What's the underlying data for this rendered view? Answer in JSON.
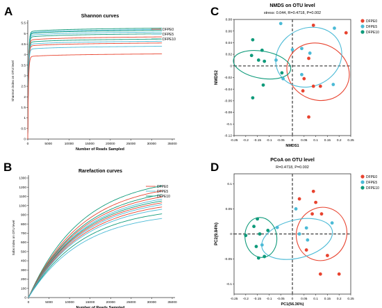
{
  "colors": {
    "dfpe0": "#e8432f",
    "dfpe5": "#4bbad6",
    "dfpe10": "#0e9a7a",
    "axis": "#222222"
  },
  "chart_data": [
    {
      "panel": "A",
      "type": "line",
      "title": "Shannon curves",
      "xlabel": "Number of Reads Sampled",
      "ylabel": "Shannon index on OTU level",
      "xlim": [
        0,
        35000
      ],
      "ylim": [
        0,
        5.5
      ],
      "xticks": [
        "0",
        "5000",
        "10000",
        "15000",
        "20000",
        "25000",
        "30000",
        "35000"
      ],
      "yticks": [
        "0",
        "0.5",
        "1",
        "1.5",
        "2",
        "2.5",
        "3",
        "3.5",
        "4",
        "4.5",
        "5",
        "5.5"
      ],
      "legend": [
        "DFPE0",
        "DFPE5",
        "DFPE10"
      ],
      "series": [
        {
          "group": "dfpe10",
          "plateau": 5.08
        },
        {
          "group": "dfpe5",
          "plateau": 5.02
        },
        {
          "group": "dfpe10",
          "plateau": 4.98
        },
        {
          "group": "dfpe5",
          "plateau": 4.9
        },
        {
          "group": "dfpe10",
          "plateau": 4.82
        },
        {
          "group": "dfpe0",
          "plateau": 4.68
        },
        {
          "group": "dfpe10",
          "plateau": 4.58
        },
        {
          "group": "dfpe5",
          "plateau": 4.48
        },
        {
          "group": "dfpe0",
          "plateau": 4.4
        },
        {
          "group": "dfpe5",
          "plateau": 4.25
        },
        {
          "group": "dfpe0",
          "plateau": 3.9
        }
      ]
    },
    {
      "panel": "B",
      "type": "line",
      "title": "Rarefaction curves",
      "xlabel": "Number of Reads Sampled",
      "ylabel": "Sobs index on OTU level",
      "xlim": [
        0,
        35000
      ],
      "ylim": [
        0,
        1300
      ],
      "xticks": [
        "0",
        "5000",
        "10000",
        "15000",
        "20000",
        "25000",
        "30000",
        "35000"
      ],
      "yticks": [
        "0",
        "100",
        "200",
        "300",
        "400",
        "500",
        "600",
        "700",
        "800",
        "900",
        "1000",
        "1100",
        "1200",
        "1300"
      ],
      "legend": [
        "DFPE0",
        "DFPE5",
        "DFPE10"
      ],
      "series": [
        {
          "group": "dfpe10",
          "end": 1215
        },
        {
          "group": "dfpe0",
          "end": 1160
        },
        {
          "group": "dfpe10",
          "end": 1120
        },
        {
          "group": "dfpe0",
          "end": 1095
        },
        {
          "group": "dfpe5",
          "end": 1070
        },
        {
          "group": "dfpe10",
          "end": 1050
        },
        {
          "group": "dfpe0",
          "end": 1030
        },
        {
          "group": "dfpe5",
          "end": 1010
        },
        {
          "group": "dfpe0",
          "end": 985
        },
        {
          "group": "dfpe5",
          "end": 960
        },
        {
          "group": "dfpe10",
          "end": 910
        },
        {
          "group": "dfpe5",
          "end": 860
        }
      ]
    },
    {
      "panel": "C",
      "type": "scatter",
      "title": "NMDS on OTU level",
      "subtitle": "stress: 0.044, R=0.4718, P=0.002",
      "xlabel": "NMDS1",
      "ylabel": "NMDS2",
      "xlim": [
        -0.25,
        0.25
      ],
      "ylim": [
        -0.12,
        0.08
      ],
      "xticks": [
        "-0.25",
        "-0.2",
        "-0.15",
        "-0.1",
        "-0.05",
        "0",
        "0.05",
        "0.1",
        "0.15",
        "0.2",
        "0.25"
      ],
      "yticks": [
        "-0.12",
        "-0.1",
        "-0.08",
        "-0.06",
        "-0.04",
        "-0.02",
        "0",
        "0.02",
        "0.04",
        "0.06",
        "0.08"
      ],
      "legend": [
        "DFPE0",
        "DFPE5",
        "DFPE10"
      ],
      "points": [
        {
          "group": "dfpe0",
          "x": 0.09,
          "y": 0.07
        },
        {
          "group": "dfpe0",
          "x": 0.23,
          "y": 0.057
        },
        {
          "group": "dfpe0",
          "x": 0.07,
          "y": 0.013
        },
        {
          "group": "dfpe0",
          "x": 0.05,
          "y": -0.022
        },
        {
          "group": "dfpe0",
          "x": 0.09,
          "y": -0.035
        },
        {
          "group": "dfpe0",
          "x": 0.12,
          "y": -0.035
        },
        {
          "group": "dfpe0",
          "x": 0.045,
          "y": -0.043
        },
        {
          "group": "dfpe0",
          "x": 0.07,
          "y": -0.088
        },
        {
          "group": "dfpe5",
          "x": -0.05,
          "y": 0.073
        },
        {
          "group": "dfpe5",
          "x": 0.18,
          "y": 0.065
        },
        {
          "group": "dfpe5",
          "x": 0.0,
          "y": 0.028
        },
        {
          "group": "dfpe5",
          "x": 0.04,
          "y": 0.03
        },
        {
          "group": "dfpe5",
          "x": 0.075,
          "y": 0.022
        },
        {
          "group": "dfpe5",
          "x": -0.07,
          "y": 0.01
        },
        {
          "group": "dfpe5",
          "x": -0.04,
          "y": -0.022
        },
        {
          "group": "dfpe5",
          "x": 0.04,
          "y": -0.015
        },
        {
          "group": "dfpe5",
          "x": 0.175,
          "y": -0.032
        },
        {
          "group": "dfpe10",
          "x": -0.17,
          "y": 0.045
        },
        {
          "group": "dfpe10",
          "x": -0.13,
          "y": 0.027
        },
        {
          "group": "dfpe10",
          "x": -0.145,
          "y": 0.01
        },
        {
          "group": "dfpe10",
          "x": -0.175,
          "y": 0.018
        },
        {
          "group": "dfpe10",
          "x": -0.12,
          "y": 0.008
        },
        {
          "group": "dfpe10",
          "x": -0.045,
          "y": -0.012
        },
        {
          "group": "dfpe10",
          "x": -0.125,
          "y": -0.033
        },
        {
          "group": "dfpe10",
          "x": -0.17,
          "y": -0.055
        }
      ],
      "ellipses": [
        {
          "group": "dfpe0",
          "cx": 0.11,
          "cy": -0.01,
          "rx": 0.12,
          "ry": 0.055,
          "angle": -65
        },
        {
          "group": "dfpe5",
          "cx": 0.07,
          "cy": 0.015,
          "rx": 0.145,
          "ry": 0.05,
          "angle": -25
        },
        {
          "group": "dfpe10",
          "cx": -0.13,
          "cy": 0.002,
          "rx": 0.058,
          "ry": 0.05,
          "angle": -80
        }
      ]
    },
    {
      "panel": "D",
      "type": "scatter",
      "title": "PCoA on OTU level",
      "subtitle": "R=0.4718, P=0.002",
      "xlabel": "PC1(56.36%)",
      "ylabel": "PC2(9.84%)",
      "xlim": [
        -0.25,
        0.25
      ],
      "ylim": [
        -0.12,
        0.12
      ],
      "xticks": [
        "-0.25",
        "-0.2",
        "-0.15",
        "-0.1",
        "-0.05",
        "0",
        "0.05",
        "0.1",
        "0.15",
        "0.2",
        "0.25"
      ],
      "yticks": [
        "-0.1",
        "-0.05",
        "0",
        "0.05",
        "0.1"
      ],
      "legend": [
        "DFPE0",
        "DFPE5",
        "DFPE10"
      ],
      "points": [
        {
          "group": "dfpe0",
          "x": 0.09,
          "y": 0.085
        },
        {
          "group": "dfpe0",
          "x": 0.03,
          "y": 0.07
        },
        {
          "group": "dfpe0",
          "x": 0.1,
          "y": 0.063
        },
        {
          "group": "dfpe0",
          "x": 0.085,
          "y": 0.04
        },
        {
          "group": "dfpe0",
          "x": 0.125,
          "y": 0.04
        },
        {
          "group": "dfpe0",
          "x": 0.06,
          "y": -0.032
        },
        {
          "group": "dfpe0",
          "x": 0.15,
          "y": -0.043
        },
        {
          "group": "dfpe0",
          "x": 0.2,
          "y": -0.08
        },
        {
          "group": "dfpe0",
          "x": 0.12,
          "y": -0.08
        },
        {
          "group": "dfpe5",
          "x": 0.015,
          "y": 0.05
        },
        {
          "group": "dfpe5",
          "x": 0.17,
          "y": 0.022
        },
        {
          "group": "dfpe5",
          "x": -0.065,
          "y": 0.013
        },
        {
          "group": "dfpe5",
          "x": 0.06,
          "y": 0.012
        },
        {
          "group": "dfpe5",
          "x": 0.03,
          "y": 0.0
        },
        {
          "group": "dfpe5",
          "x": -0.13,
          "y": -0.022
        },
        {
          "group": "dfpe5",
          "x": 0.065,
          "y": -0.012
        },
        {
          "group": "dfpe5",
          "x": -0.12,
          "y": -0.045
        },
        {
          "group": "dfpe10",
          "x": -0.15,
          "y": 0.03
        },
        {
          "group": "dfpe10",
          "x": -0.165,
          "y": 0.015
        },
        {
          "group": "dfpe10",
          "x": -0.105,
          "y": 0.007
        },
        {
          "group": "dfpe10",
          "x": -0.14,
          "y": 0.0
        },
        {
          "group": "dfpe10",
          "x": -0.2,
          "y": -0.003
        },
        {
          "group": "dfpe10",
          "x": -0.155,
          "y": -0.025
        },
        {
          "group": "dfpe10",
          "x": -0.12,
          "y": -0.045
        },
        {
          "group": "dfpe10",
          "x": -0.145,
          "y": -0.048
        }
      ],
      "ellipses": [
        {
          "group": "dfpe0",
          "cx": 0.125,
          "cy": 0.0,
          "rx": 0.115,
          "ry": 0.05,
          "angle": -68
        },
        {
          "group": "dfpe5",
          "cx": 0.02,
          "cy": -0.01,
          "rx": 0.155,
          "ry": 0.038,
          "angle": -14
        },
        {
          "group": "dfpe10",
          "cx": -0.135,
          "cy": -0.007,
          "rx": 0.068,
          "ry": 0.04,
          "angle": -8
        }
      ]
    }
  ]
}
